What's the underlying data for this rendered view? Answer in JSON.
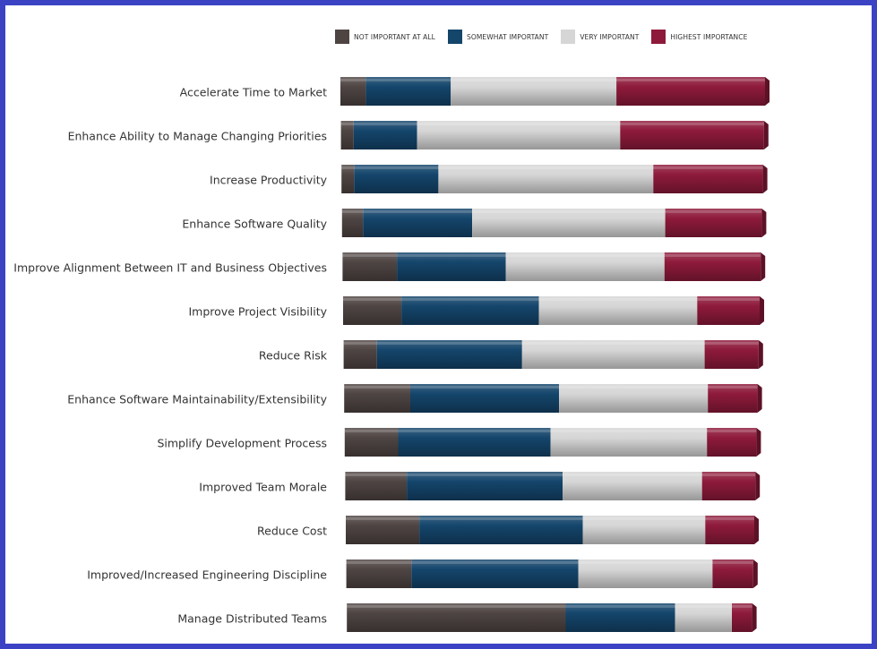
{
  "legend": {
    "not_important": "NOT IMPORTANT AT ALL",
    "somewhat": "SOMEWHAT IMPORTANT",
    "very": "VERY IMPORTANT",
    "highest": "HIGHEST IMPORTANCE"
  },
  "colors": {
    "not_important": "#4e4543",
    "somewhat": "#14456b",
    "very": "#d6d6d6",
    "highest": "#8e1a3b",
    "border": "#3b43c4"
  },
  "chart_data": {
    "type": "bar",
    "orientation": "horizontal",
    "stacked": true,
    "categories": [
      "Accelerate Time to Market",
      "Enhance Ability to Manage Changing Priorities",
      "Increase Productivity",
      "Enhance Software Quality",
      "Improve Alignment Between IT and Business Objectives",
      "Improve Project Visibility",
      "Reduce Risk",
      "Enhance Software Maintainability/Extensibility",
      "Simplify Development Process",
      "Improved Team Morale",
      "Reduce Cost",
      "Improved/Increased Engineering Discipline",
      "Manage Distributed Teams"
    ],
    "series": [
      {
        "name": "NOT IMPORTANT AT ALL",
        "values": [
          6,
          3,
          3,
          5,
          13,
          14,
          8,
          16,
          13,
          15,
          18,
          16,
          54
        ]
      },
      {
        "name": "SOMEWHAT IMPORTANT",
        "values": [
          20,
          15,
          20,
          26,
          26,
          33,
          35,
          36,
          37,
          38,
          40,
          41,
          27
        ]
      },
      {
        "name": "VERY IMPORTANT",
        "values": [
          39,
          48,
          51,
          46,
          38,
          38,
          44,
          36,
          38,
          34,
          30,
          33,
          14
        ]
      },
      {
        "name": "HIGHEST IMPORTANCE",
        "values": [
          35,
          34,
          26,
          23,
          23,
          15,
          13,
          12,
          12,
          13,
          12,
          10,
          5
        ]
      }
    ],
    "xlim": [
      0,
      100
    ],
    "legend_position": "top",
    "grid": false
  }
}
